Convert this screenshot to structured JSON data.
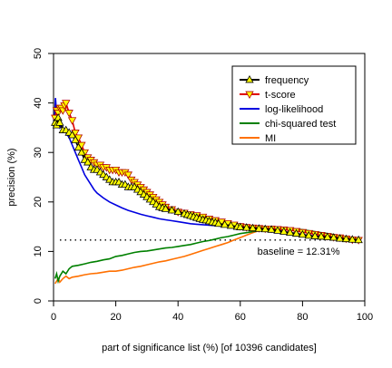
{
  "chart_data": {
    "type": "line",
    "xlabel": "part of significance list (%) [of 10396 candidates]",
    "ylabel": "precision (%)",
    "xlim": [
      0,
      100
    ],
    "ylim": [
      0,
      50
    ],
    "xticks": [
      "0",
      "20",
      "40",
      "60",
      "80",
      "100"
    ],
    "yticks": [
      "0",
      "10",
      "20",
      "30",
      "40",
      "50"
    ],
    "grid": false,
    "legend_position": "top-right",
    "baseline": {
      "value": 12.31,
      "label": "baseline = 12.31%"
    },
    "series": [
      {
        "name": "frequency",
        "color": "#000000",
        "marker": "triangle-up",
        "x": [
          0.5,
          1,
          1.5,
          2,
          3,
          4,
          5,
          6,
          7,
          8,
          9,
          10,
          11,
          12,
          13,
          14,
          15,
          16,
          17,
          18,
          19,
          20,
          21,
          22,
          23,
          24,
          25,
          26,
          27,
          28,
          29,
          30,
          31,
          32,
          33,
          34,
          35,
          36,
          38,
          40,
          42,
          43,
          44,
          45,
          46,
          47,
          48,
          49,
          50,
          51,
          52,
          53,
          55,
          57,
          59,
          60,
          62,
          64,
          66,
          68,
          70,
          72,
          74,
          76,
          78,
          80,
          82,
          84,
          86,
          88,
          90,
          92,
          94,
          96,
          98
        ],
        "y": [
          36,
          35.5,
          37,
          36,
          34.5,
          34.5,
          34,
          33.5,
          32.5,
          31,
          30,
          28.5,
          28,
          27,
          26.5,
          26.5,
          26,
          25.5,
          25,
          24.5,
          24,
          24,
          24,
          23.5,
          23.5,
          23,
          23,
          23,
          22.5,
          22,
          21.5,
          21,
          20.5,
          20,
          19.5,
          19,
          18.8,
          18.6,
          18.3,
          18,
          17.6,
          17.4,
          17.2,
          17,
          16.8,
          16.6,
          16.4,
          16.3,
          16.1,
          15.9,
          15.8,
          15.6,
          15.4,
          15.2,
          15,
          14.9,
          14.8,
          14.7,
          14.6,
          14.5,
          14.4,
          14.2,
          14,
          13.8,
          13.6,
          13.4,
          13.2,
          13.1,
          13,
          12.9,
          12.8,
          12.6,
          12.5,
          12.4,
          12.31
        ]
      },
      {
        "name": "t-score",
        "color": "#e00000",
        "marker": "triangle-down",
        "x": [
          0.5,
          1,
          1.5,
          2,
          2.5,
          3,
          3.5,
          4,
          5,
          6,
          7,
          8,
          9,
          10,
          11,
          12,
          13,
          14,
          15,
          16,
          17,
          18,
          19,
          20,
          21,
          22,
          23,
          24,
          25,
          26,
          27,
          28,
          29,
          30,
          31,
          32,
          33,
          34,
          35,
          36,
          38,
          40,
          42,
          44,
          46,
          48,
          50,
          52,
          54,
          56,
          58,
          60,
          62,
          64,
          66,
          68,
          70,
          72,
          74,
          76,
          78,
          80,
          82,
          84,
          86,
          88,
          90,
          92,
          94,
          96,
          98
        ],
        "y": [
          37,
          38.5,
          38,
          39,
          39,
          38.5,
          39.5,
          40,
          38,
          36.5,
          34,
          33,
          31.5,
          30,
          29,
          28.5,
          28,
          27.5,
          27.5,
          27,
          27,
          26.5,
          26.5,
          26.5,
          26,
          26,
          26,
          25.5,
          24.5,
          24,
          23.5,
          23,
          22.5,
          22,
          21.5,
          21,
          20.5,
          20,
          19.5,
          19,
          18.5,
          18,
          17.8,
          17.5,
          17.3,
          17,
          16.6,
          16.3,
          16,
          15.7,
          15.4,
          15.1,
          14.9,
          14.8,
          14.7,
          14.6,
          14.6,
          14.5,
          14.4,
          14.3,
          14.1,
          13.9,
          13.7,
          13.5,
          13.3,
          13.1,
          12.9,
          12.8,
          12.6,
          12.4,
          12.31
        ]
      },
      {
        "name": "log-likelihood",
        "color": "#0000e0",
        "marker": "none",
        "x": [
          0.3,
          0.6,
          1,
          1.5,
          2,
          2.5,
          3,
          4,
          5,
          6,
          7,
          8,
          9,
          10,
          11,
          12,
          13,
          14,
          16,
          18,
          20,
          22,
          24,
          26,
          28,
          30,
          32,
          34,
          36,
          38,
          40,
          42,
          44,
          46,
          48,
          50,
          52,
          55,
          58,
          60,
          62,
          65,
          68,
          70,
          73,
          76,
          80,
          84,
          88,
          92,
          96,
          98
        ],
        "y": [
          36,
          41,
          38,
          36,
          35,
          35.5,
          34.5,
          34,
          33,
          31.5,
          30,
          28.5,
          27,
          25.5,
          24.5,
          23.5,
          22.5,
          21.8,
          20.8,
          20,
          19.4,
          18.8,
          18.3,
          17.9,
          17.5,
          17.2,
          16.9,
          16.6,
          16.4,
          16.2,
          16,
          15.8,
          15.6,
          15.5,
          15.4,
          15.3,
          15.2,
          15,
          14.9,
          14.8,
          14.7,
          14.6,
          14.5,
          14.5,
          14.4,
          14.3,
          14.1,
          13.8,
          13.5,
          13.1,
          12.7,
          12.5
        ]
      },
      {
        "name": "chi-squared test",
        "color": "#008000",
        "marker": "none",
        "x": [
          0.5,
          1,
          1.5,
          2,
          3,
          4,
          5,
          6,
          8,
          10,
          12,
          14,
          16,
          18,
          20,
          22,
          24,
          26,
          28,
          30,
          32,
          34,
          36,
          38,
          40,
          42,
          44,
          46,
          48,
          50,
          52,
          54,
          56,
          58,
          60,
          62,
          64,
          66,
          68,
          70,
          72,
          74,
          76,
          78,
          80,
          82,
          84,
          86,
          88,
          90,
          92,
          94,
          96,
          98
        ],
        "y": [
          4.5,
          5.5,
          4,
          5,
          6,
          5.5,
          6.5,
          7,
          7.2,
          7.5,
          7.8,
          8,
          8.3,
          8.5,
          9,
          9.2,
          9.5,
          9.8,
          10,
          10.1,
          10.3,
          10.5,
          10.7,
          10.8,
          11,
          11.2,
          11.4,
          11.7,
          12,
          12.2,
          12.5,
          12.8,
          13,
          13.3,
          13.6,
          13.8,
          14,
          14.2,
          14.3,
          14.5,
          14.6,
          14.6,
          14.6,
          14.5,
          14.4,
          14.2,
          14,
          13.8,
          13.6,
          13.4,
          13.1,
          12.9,
          12.6,
          12.4
        ]
      },
      {
        "name": "MI",
        "color": "#ff7000",
        "marker": "none",
        "x": [
          0.5,
          1,
          1.5,
          2,
          3,
          4,
          5,
          6,
          8,
          10,
          12,
          14,
          16,
          18,
          20,
          22,
          24,
          26,
          28,
          30,
          32,
          34,
          36,
          38,
          40,
          42,
          44,
          46,
          48,
          50,
          52,
          54,
          56,
          58,
          60,
          62,
          64,
          66,
          68,
          70,
          72,
          74,
          76,
          78,
          80,
          82,
          84,
          86,
          88,
          90,
          92,
          94,
          96,
          98
        ],
        "y": [
          3.5,
          4,
          4.5,
          3.8,
          4.5,
          5,
          4.5,
          4.8,
          5,
          5.3,
          5.5,
          5.6,
          5.8,
          6,
          6,
          6.2,
          6.5,
          6.8,
          7,
          7.3,
          7.6,
          7.9,
          8.1,
          8.4,
          8.7,
          9,
          9.4,
          9.8,
          10.2,
          10.6,
          11,
          11.4,
          11.8,
          12.3,
          12.8,
          13.3,
          13.8,
          14.2,
          14.4,
          14.5,
          14.5,
          14.5,
          14.4,
          14.3,
          14.2,
          14,
          13.8,
          13.6,
          13.4,
          13.2,
          13,
          12.8,
          12.6,
          12.4
        ]
      }
    ]
  }
}
